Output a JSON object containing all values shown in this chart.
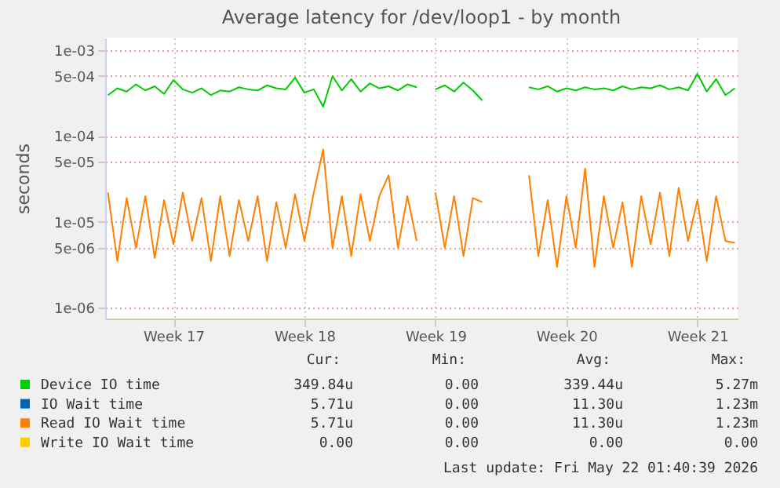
{
  "chart_data": {
    "type": "line",
    "title": "Average latency for /dev/loop1 - by month",
    "ylabel": "seconds",
    "log": true,
    "grid": true,
    "legend": "bottom",
    "ylim": [
      7.5e-07,
      0.0014
    ],
    "yticks": [
      {
        "value": 1e-06,
        "label": "1e-06"
      },
      {
        "value": 5e-06,
        "label": "5e-06"
      },
      {
        "value": 1e-05,
        "label": "1e-05"
      },
      {
        "value": 5e-05,
        "label": "5e-05"
      },
      {
        "value": 0.0001,
        "label": "1e-04"
      },
      {
        "value": 0.0005,
        "label": "5e-04"
      },
      {
        "value": 0.001,
        "label": "1e-03"
      }
    ],
    "categories": [
      null,
      null,
      null,
      null,
      null,
      null,
      null,
      "Week 17",
      null,
      null,
      null,
      null,
      null,
      null,
      null,
      null,
      null,
      null,
      null,
      null,
      null,
      "Week 18",
      null,
      null,
      null,
      null,
      null,
      null,
      null,
      null,
      null,
      null,
      null,
      null,
      null,
      "Week 19",
      null,
      null,
      null,
      null,
      null,
      null,
      null,
      null,
      null,
      null,
      null,
      null,
      null,
      "Week 20",
      null,
      null,
      null,
      null,
      null,
      null,
      null,
      null,
      null,
      null,
      null,
      null,
      null,
      "Week 21",
      null,
      null,
      null,
      null
    ],
    "series": [
      {
        "name": "Device IO time",
        "color": "#00cc00",
        "values": [
          0.0003,
          0.00036,
          0.00033,
          0.0004,
          0.00034,
          0.00038,
          0.00031,
          0.00045,
          0.00035,
          0.00032,
          0.00036,
          0.0003,
          0.00034,
          0.00033,
          0.00037,
          0.00035,
          0.00034,
          0.00039,
          0.00036,
          0.00035,
          0.00048,
          0.00032,
          0.00035,
          0.00022,
          0.0005,
          0.00034,
          0.00046,
          0.00033,
          0.00041,
          0.00036,
          0.00038,
          0.00034,
          0.0004,
          0.00037,
          null,
          0.00035,
          0.00039,
          0.00033,
          0.00042,
          0.00034,
          0.00026,
          null,
          null,
          null,
          null,
          0.00037,
          0.00035,
          0.00038,
          0.00033,
          0.00036,
          0.00034,
          0.00037,
          0.00035,
          0.00036,
          0.00034,
          0.00038,
          0.00035,
          0.00037,
          0.00036,
          0.00039,
          0.00035,
          0.00037,
          0.00034,
          0.00053,
          0.00033,
          0.00046,
          0.0003,
          0.00036
        ]
      },
      {
        "name": "IO Wait time",
        "color": "#0066b3",
        "values": [
          null,
          null,
          null,
          null,
          null,
          null,
          null,
          null,
          null,
          null,
          null,
          null,
          null,
          null,
          null,
          null,
          null,
          null,
          null,
          null,
          null,
          null,
          null,
          null,
          null,
          null,
          null,
          null,
          null,
          null,
          null,
          null,
          null,
          null,
          null,
          null,
          null,
          null,
          null,
          null,
          null,
          null,
          null,
          null,
          null,
          null,
          null,
          null,
          null,
          null,
          null,
          null,
          null,
          null,
          null,
          null,
          null,
          null,
          null,
          null,
          null,
          null,
          null,
          null,
          null,
          null,
          null,
          null
        ]
      },
      {
        "name": "Read IO Wait time",
        "color": "#ff8000",
        "values": [
          2.2e-05,
          3.5e-06,
          1.9e-05,
          5e-06,
          2e-05,
          3.8e-06,
          1.8e-05,
          5.5e-06,
          2.2e-05,
          6e-06,
          1.9e-05,
          3.5e-06,
          2e-05,
          4e-06,
          1.8e-05,
          6e-06,
          2e-05,
          3.5e-06,
          1.7e-05,
          5e-06,
          2.1e-05,
          6e-06,
          2.2e-05,
          7e-05,
          5e-06,
          2e-05,
          4e-06,
          2.1e-05,
          6e-06,
          2e-05,
          3.5e-05,
          5e-06,
          2e-05,
          6e-06,
          null,
          2.2e-05,
          5e-06,
          2e-05,
          4e-06,
          1.9e-05,
          1.7e-05,
          null,
          null,
          null,
          null,
          3.5e-05,
          4e-06,
          1.8e-05,
          3e-06,
          2e-05,
          5e-06,
          4.2e-05,
          3e-06,
          2e-05,
          5e-06,
          1.7e-05,
          3e-06,
          2e-05,
          5.5e-06,
          2.2e-05,
          4e-06,
          2.5e-05,
          6e-06,
          1.8e-05,
          3.5e-06,
          2e-05,
          6e-06,
          5.7e-06
        ]
      },
      {
        "name": "Write IO Wait time",
        "color": "#ffcc00",
        "values": [
          null,
          null,
          null,
          null,
          null,
          null,
          null,
          null,
          null,
          null,
          null,
          null,
          null,
          null,
          null,
          null,
          null,
          null,
          null,
          null,
          null,
          null,
          null,
          null,
          null,
          null,
          null,
          null,
          null,
          null,
          null,
          null,
          null,
          null,
          null,
          null,
          null,
          null,
          null,
          null,
          null,
          null,
          null,
          null,
          null,
          null,
          null,
          null,
          null,
          null,
          null,
          null,
          null,
          null,
          null,
          null,
          null,
          null,
          null,
          null,
          null,
          null,
          null,
          null,
          null,
          null,
          null,
          null
        ]
      }
    ],
    "annotations": [
      "Cur:",
      "Min:",
      "Avg:",
      "Max:",
      "349.84u",
      "0.00",
      "339.44u",
      "5.27m",
      "5.71u",
      "0.00",
      "11.30u",
      "1.23m",
      "5.71u",
      "0.00",
      "11.30u",
      "1.23m",
      "0.00",
      "0.00",
      "0.00",
      "0.00",
      "Last update: Fri May 22 01:40:39 2026"
    ]
  }
}
